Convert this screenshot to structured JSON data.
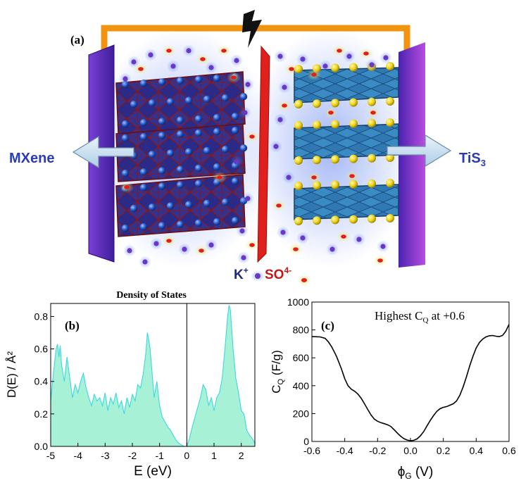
{
  "figure": {
    "panel_a": {
      "panel_label": "(a)",
      "left_electrode": "MXene",
      "right_electrode": "TiS",
      "right_electrode_sub": "3",
      "cation": "K",
      "cation_charge": "+",
      "anion": "SO",
      "anion_charge": "4-",
      "colors": {
        "wire": "#f0940f",
        "collector": "#5a2bb8",
        "separator": "#e0201c",
        "mxene_octahedra": "#2e2c8a",
        "tis3_layers": "#2f7db8",
        "sulfur": "#f2dc10",
        "potassium_ion": "#6a38c8",
        "sulfate_ion": "#e31d1d"
      }
    }
  },
  "chart_data": [
    {
      "type": "area",
      "panel_label": "(b)",
      "title": "Density of States",
      "xlabel": "E (eV)",
      "ylabel": "D(E) / Å²",
      "xlim": [
        -5,
        2.5
      ],
      "ylim": [
        0,
        0.88
      ],
      "xticks": [
        -5,
        -4,
        -3,
        -2,
        -1,
        0,
        1,
        2
      ],
      "yticks": [
        0.0,
        0.2,
        0.4,
        0.6,
        0.8
      ],
      "fill_color": "#a7f2d6",
      "line_color": "#3ad8e0",
      "fermi_level_x": 0,
      "x": [
        -5.0,
        -4.9,
        -4.8,
        -4.75,
        -4.7,
        -4.65,
        -4.6,
        -4.5,
        -4.4,
        -4.3,
        -4.2,
        -4.1,
        -4.0,
        -3.9,
        -3.8,
        -3.7,
        -3.6,
        -3.5,
        -3.4,
        -3.3,
        -3.2,
        -3.1,
        -3.0,
        -2.9,
        -2.8,
        -2.7,
        -2.6,
        -2.5,
        -2.4,
        -2.3,
        -2.2,
        -2.1,
        -2.0,
        -1.9,
        -1.8,
        -1.7,
        -1.6,
        -1.5,
        -1.45,
        -1.4,
        -1.35,
        -1.3,
        -1.2,
        -1.1,
        -1.0,
        -0.9,
        -0.8,
        -0.7,
        -0.6,
        -0.5,
        -0.4,
        -0.3,
        -0.2,
        -0.1,
        0.0,
        0.1,
        0.2,
        0.3,
        0.4,
        0.5,
        0.6,
        0.7,
        0.8,
        0.9,
        1.0,
        1.1,
        1.2,
        1.3,
        1.4,
        1.5,
        1.55,
        1.6,
        1.65,
        1.7,
        1.8,
        1.9,
        2.0,
        2.1,
        2.2,
        2.3,
        2.4,
        2.5
      ],
      "y": [
        0.28,
        0.45,
        0.6,
        0.63,
        0.55,
        0.62,
        0.5,
        0.4,
        0.55,
        0.42,
        0.3,
        0.38,
        0.33,
        0.4,
        0.45,
        0.36,
        0.3,
        0.25,
        0.32,
        0.28,
        0.3,
        0.25,
        0.33,
        0.22,
        0.3,
        0.26,
        0.33,
        0.24,
        0.28,
        0.2,
        0.3,
        0.24,
        0.32,
        0.28,
        0.38,
        0.36,
        0.45,
        0.58,
        0.7,
        0.66,
        0.6,
        0.5,
        0.3,
        0.4,
        0.25,
        0.18,
        0.15,
        0.12,
        0.1,
        0.07,
        0.04,
        0.02,
        0.01,
        0.0,
        0.0,
        0.05,
        0.12,
        0.18,
        0.24,
        0.3,
        0.38,
        0.35,
        0.25,
        0.3,
        0.22,
        0.3,
        0.33,
        0.42,
        0.6,
        0.8,
        0.87,
        0.84,
        0.72,
        0.6,
        0.42,
        0.33,
        0.22,
        0.2,
        0.1,
        0.07,
        0.05,
        0.02
      ]
    },
    {
      "type": "line",
      "panel_label": "(c)",
      "annotation": "Highest C",
      "annotation_sub": "Q",
      "annotation_tail": " at +0.6",
      "xlabel_symbol": "ϕ",
      "xlabel_sub": "G",
      "xlabel_unit": " (V)",
      "ylabel": "C",
      "ylabel_sub": "Q",
      "ylabel_unit": " (F/g)",
      "xlim": [
        -0.6,
        0.6
      ],
      "ylim": [
        0,
        1000
      ],
      "xticks": [
        -0.6,
        -0.4,
        -0.2,
        0.0,
        0.2,
        0.4,
        0.6
      ],
      "xtick_labels": [
        "-0.6",
        "-0.4",
        "-0.2",
        "0.0",
        "0.2",
        "0.4",
        "0.6"
      ],
      "yticks": [
        0,
        200,
        400,
        600,
        800,
        1000
      ],
      "line_color": "#000000",
      "x": [
        -0.6,
        -0.55,
        -0.52,
        -0.5,
        -0.48,
        -0.45,
        -0.42,
        -0.4,
        -0.38,
        -0.36,
        -0.34,
        -0.32,
        -0.3,
        -0.28,
        -0.26,
        -0.24,
        -0.22,
        -0.2,
        -0.18,
        -0.16,
        -0.14,
        -0.12,
        -0.1,
        -0.08,
        -0.06,
        -0.04,
        -0.02,
        0.0,
        0.02,
        0.04,
        0.06,
        0.08,
        0.1,
        0.12,
        0.14,
        0.16,
        0.18,
        0.2,
        0.22,
        0.24,
        0.26,
        0.28,
        0.3,
        0.32,
        0.34,
        0.36,
        0.38,
        0.4,
        0.42,
        0.44,
        0.46,
        0.48,
        0.5,
        0.52,
        0.54,
        0.56,
        0.58,
        0.6
      ],
      "y": [
        752,
        750,
        740,
        715,
        680,
        610,
        520,
        450,
        400,
        375,
        360,
        340,
        310,
        270,
        230,
        190,
        160,
        145,
        135,
        128,
        120,
        108,
        85,
        60,
        38,
        20,
        10,
        5,
        8,
        18,
        40,
        70,
        110,
        150,
        185,
        215,
        235,
        245,
        250,
        260,
        270,
        290,
        330,
        390,
        460,
        540,
        610,
        670,
        710,
        735,
        750,
        758,
        760,
        755,
        752,
        760,
        790,
        840
      ]
    }
  ]
}
